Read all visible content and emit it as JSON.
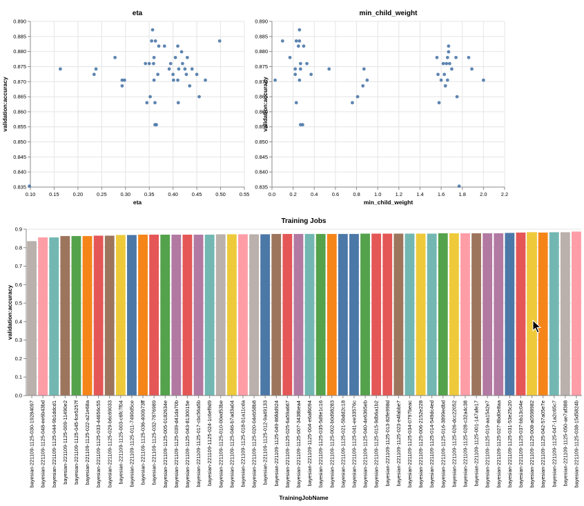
{
  "chart_data": [
    {
      "type": "scatter",
      "title": "eta",
      "xlabel": "eta",
      "ylabel": "validation:accuracy",
      "xlim": [
        0.1,
        0.55
      ],
      "ylim": [
        0.835,
        0.89
      ],
      "x_ticks": [
        "0.10",
        "0.15",
        "0.20",
        "0.25",
        "0.30",
        "0.35",
        "0.40",
        "0.45",
        "0.50",
        "0.55"
      ],
      "y_ticks": [
        "0.835",
        "0.840",
        "0.845",
        "0.850",
        "0.855",
        "0.860",
        "0.865",
        "0.870",
        "0.875",
        "0.880",
        "0.885",
        "0.890"
      ],
      "grid": true,
      "color": "#4c78a8",
      "points": [
        [
          0.098,
          0.8353
        ],
        [
          0.163,
          0.8742
        ],
        [
          0.234,
          0.8724
        ],
        [
          0.238,
          0.8742
        ],
        [
          0.278,
          0.878
        ],
        [
          0.293,
          0.8705
        ],
        [
          0.293,
          0.8686
        ],
        [
          0.298,
          0.8705
        ],
        [
          0.342,
          0.876
        ],
        [
          0.345,
          0.863
        ],
        [
          0.35,
          0.876
        ],
        [
          0.352,
          0.865
        ],
        [
          0.355,
          0.8835
        ],
        [
          0.357,
          0.8872
        ],
        [
          0.359,
          0.876
        ],
        [
          0.36,
          0.8705
        ],
        [
          0.36,
          0.878
        ],
        [
          0.362,
          0.863
        ],
        [
          0.363,
          0.8835
        ],
        [
          0.362,
          0.8557
        ],
        [
          0.365,
          0.8557
        ],
        [
          0.368,
          0.8724
        ],
        [
          0.37,
          0.8818
        ],
        [
          0.382,
          0.8818
        ],
        [
          0.392,
          0.8742
        ],
        [
          0.395,
          0.876
        ],
        [
          0.4,
          0.8724
        ],
        [
          0.401,
          0.8705
        ],
        [
          0.405,
          0.878
        ],
        [
          0.41,
          0.8818
        ],
        [
          0.41,
          0.8705
        ],
        [
          0.411,
          0.863
        ],
        [
          0.412,
          0.8742
        ],
        [
          0.418,
          0.8799
        ],
        [
          0.42,
          0.876
        ],
        [
          0.425,
          0.8742
        ],
        [
          0.428,
          0.8724
        ],
        [
          0.43,
          0.878
        ],
        [
          0.435,
          0.8686
        ],
        [
          0.44,
          0.8742
        ],
        [
          0.45,
          0.8724
        ],
        [
          0.455,
          0.865
        ],
        [
          0.468,
          0.8705
        ],
        [
          0.498,
          0.8835
        ]
      ]
    },
    {
      "type": "scatter",
      "title": "min_child_weight",
      "xlabel": "min_child_weight",
      "ylabel": "validation:accuracy",
      "xlim": [
        0.0,
        2.2
      ],
      "ylim": [
        0.835,
        0.89
      ],
      "x_ticks": [
        "0.0",
        "0.2",
        "0.4",
        "0.6",
        "0.8",
        "1.0",
        "1.2",
        "1.4",
        "1.6",
        "1.8",
        "2.0",
        "2.2"
      ],
      "y_ticks": [
        "0.835",
        "0.840",
        "0.845",
        "0.850",
        "0.855",
        "0.860",
        "0.865",
        "0.870",
        "0.875",
        "0.880",
        "0.885",
        "0.890"
      ],
      "grid": true,
      "color": "#4c78a8",
      "points": [
        [
          0.03,
          0.8705
        ],
        [
          0.1,
          0.8835
        ],
        [
          0.17,
          0.878
        ],
        [
          0.22,
          0.8742
        ],
        [
          0.22,
          0.8724
        ],
        [
          0.23,
          0.863
        ],
        [
          0.23,
          0.8835
        ],
        [
          0.25,
          0.8818
        ],
        [
          0.26,
          0.8835
        ],
        [
          0.26,
          0.8872
        ],
        [
          0.27,
          0.876
        ],
        [
          0.27,
          0.8742
        ],
        [
          0.26,
          0.8705
        ],
        [
          0.27,
          0.8557
        ],
        [
          0.29,
          0.8557
        ],
        [
          0.3,
          0.8818
        ],
        [
          0.33,
          0.876
        ],
        [
          0.37,
          0.8724
        ],
        [
          0.54,
          0.8742
        ],
        [
          0.76,
          0.863
        ],
        [
          0.81,
          0.865
        ],
        [
          0.86,
          0.8686
        ],
        [
          0.87,
          0.8742
        ],
        [
          0.9,
          0.8705
        ],
        [
          1.56,
          0.878
        ],
        [
          1.57,
          0.8724
        ],
        [
          1.58,
          0.863
        ],
        [
          1.6,
          0.8705
        ],
        [
          1.62,
          0.876
        ],
        [
          1.63,
          0.8724
        ],
        [
          1.64,
          0.8686
        ],
        [
          1.65,
          0.876
        ],
        [
          1.66,
          0.878
        ],
        [
          1.66,
          0.8705
        ],
        [
          1.67,
          0.8818
        ],
        [
          1.67,
          0.8799
        ],
        [
          1.68,
          0.876
        ],
        [
          1.7,
          0.8742
        ],
        [
          1.74,
          0.878
        ],
        [
          1.75,
          0.865
        ],
        [
          1.77,
          0.8353
        ],
        [
          1.86,
          0.878
        ],
        [
          1.89,
          0.8742
        ],
        [
          2.0,
          0.8705
        ]
      ]
    },
    {
      "type": "bar",
      "title": "Training Jobs",
      "xlabel": "TrainingJobName",
      "ylabel": "validation:accuracy",
      "ylim": [
        0,
        0.9
      ],
      "y_ticks": [
        "0.0",
        "0.1",
        "0.2",
        "0.3",
        "0.4",
        "0.5",
        "0.6",
        "0.7",
        "0.8",
        "0.9"
      ],
      "grid": true,
      "categories": [
        "bayesian-221109-1125-030-19284097",
        "bayesian-221109-1125-048-ee6b43bd",
        "bayesian-221109-1125-044-9b1ddcd1",
        "bayesian-221109-1125-009-11490e2",
        "bayesian-221109-1125-045-fce5257f",
        "bayesian-221109-1125-022-a21e68a",
        "bayesian-221109-1125-033-44656c55",
        "bayesian-221109-1125-029-b6c69033",
        "bayesian-221109-1125-003-c6fc7f04",
        "bayesian-221109-1125-011-7490d5ce",
        "bayesian-221109-1125-036-400b73ff",
        "bayesian-221109-1125-032-7876989",
        "bayesian-221109-1125-005-0182634e",
        "bayesian-221109-1125-039-d41da70b",
        "bayesian-221109-1125-043-8130015e",
        "bayesian-221109-1125-017-cbc56a5b",
        "bayesian-221109-1125-024-1c6ef9d9",
        "bayesian-221109-1125-010-00ed53be",
        "bayesian-221109-1125-046-b7ad3a04",
        "bayesian-221109-1125-018-b1a11cda",
        "bayesian-221109-1125-020-04eb58b8",
        "bayesian-221109-1125-012-9a49133",
        "bayesian-221109-1125-049-86fdd924",
        "bayesian-221109-1125-025-6a59a667",
        "bayesian-221109-1125-007-3438bea4",
        "bayesian-221109-1125-004-e6af6094",
        "bayesian-221109-1125-035-5d9e1c16",
        "bayesian-221109-1125-002-b0d98283",
        "bayesian-221109-1125-021-5bdd2c18",
        "bayesian-221109-1125-041-ee33576c",
        "bayesian-221109-1125-040-4e6365eb",
        "bayesian-221109-1125-015-9db6a1b2",
        "bayesian-221109-1125-013-82fe998d",
        "bayesian-221109-1125-023-e4fabbe7",
        "bayesian-221109-1125-034-0797beac",
        "bayesian-221109-1125-006-2152e228",
        "bayesian-221109-1125-014-549dc4ed",
        "bayesian-221109-1125-016-3899edbd",
        "bayesian-221109-1125-026-dcc22052",
        "bayesian-221109-1125-028-c32a4c38",
        "bayesian-221109-1125-001-147afe17",
        "bayesian-221109-1125-019-aa1542e7",
        "bayesian-221109-1125-027-8bd0e8aa",
        "bayesian-221109-1125-031-53e25c20",
        "bayesian-221109-1125-037-bb13c04e",
        "bayesian-221109-1125-008-a0598982",
        "bayesian-221109-1125-042-57a05e7e",
        "bayesian-221109-1125-047-1a2c65c7",
        "bayesian-221109-1125-050-ae7af388",
        "bayesian-221109-1125-038-15d5824b"
      ],
      "values": [
        0.8353,
        0.8557,
        0.8557,
        0.863,
        0.863,
        0.863,
        0.865,
        0.865,
        0.8686,
        0.8686,
        0.8705,
        0.8705,
        0.8705,
        0.8705,
        0.8705,
        0.8705,
        0.8705,
        0.8724,
        0.8724,
        0.8724,
        0.8724,
        0.8724,
        0.8742,
        0.8742,
        0.8742,
        0.8742,
        0.8742,
        0.8742,
        0.8742,
        0.8742,
        0.876,
        0.876,
        0.876,
        0.876,
        0.876,
        0.876,
        0.876,
        0.878,
        0.878,
        0.878,
        0.878,
        0.878,
        0.878,
        0.8799,
        0.8818,
        0.8818,
        0.8818,
        0.8835,
        0.8835,
        0.8872
      ],
      "colors": [
        "#bab0ac",
        "#ff9da6",
        "#72b7b2",
        "#9d755d",
        "#54a24b",
        "#f58518",
        "#e45756",
        "#9d755d",
        "#eeca3b",
        "#4c78a8",
        "#f58518",
        "#e45756",
        "#54a24b",
        "#b279a2",
        "#e45756",
        "#b279a2",
        "#72b7b2",
        "#bab0ac",
        "#eeca3b",
        "#ff9da6",
        "#bab0ac",
        "#4c78a8",
        "#9d755d",
        "#e45756",
        "#b279a2",
        "#72b7b2",
        "#54a24b",
        "#f58518",
        "#4c78a8",
        "#4c78a8",
        "#54a24b",
        "#e45756",
        "#e45756",
        "#9d755d",
        "#72b7b2",
        "#eeca3b",
        "#72b7b2",
        "#54a24b",
        "#eeca3b",
        "#ff9da6",
        "#9d755d",
        "#b279a2",
        "#b279a2",
        "#4c78a8",
        "#e45756",
        "#eeca3b",
        "#f58518",
        "#72b7b2",
        "#bab0ac",
        "#ff9da6"
      ],
      "highlighted_index": 45
    }
  ],
  "cursor": {
    "icon": "mouse-pointer-icon"
  }
}
